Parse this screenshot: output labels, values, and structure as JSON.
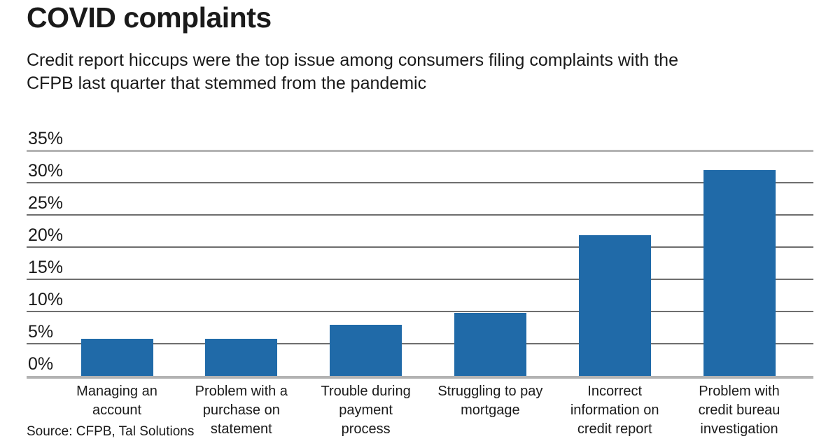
{
  "header": {
    "title": "COVID complaints",
    "subtitle": "Credit report hiccups were the top issue among consumers filing complaints with the\nCFPB last quarter that stemmed from the pandemic"
  },
  "source_note": "Source: CFPB, Tal Solutions",
  "colors": {
    "bar": "#206aa8",
    "gridline": "#6e6e6e",
    "boundary_line": "#b3b3b3",
    "text": "#1a1a1a",
    "background": "#ffffff"
  },
  "chart_data": {
    "type": "bar",
    "title": "COVID complaints",
    "subtitle": "Credit report hiccups were the top issue among consumers filing complaints with the CFPB last quarter that stemmed from the pandemic",
    "categories": [
      "Managing an account",
      "Problem with a purchase on statement",
      "Trouble during payment process",
      "Struggling to pay mortgage",
      "Incorrect information on credit report",
      "Problem with credit bureau investigation"
    ],
    "category_lines": [
      "Managing an\naccount",
      "Problem with a\npurchase on\nstatement",
      "Trouble during\npayment\nprocess",
      "Struggling to pay\nmortgage",
      "Incorrect\ninformation on\ncredit report",
      "Problem with\ncredit bureau\ninvestigation"
    ],
    "values": [
      5.8,
      5.8,
      7.9,
      9.8,
      21.9,
      32
    ],
    "unit": "%",
    "xlabel": "",
    "ylabel": "",
    "ylim": [
      0,
      35
    ],
    "yticks": [
      0,
      5,
      10,
      15,
      20,
      25,
      30,
      35
    ],
    "ytick_format": "{v}%",
    "grid": true,
    "legend": "none",
    "source": "Source: CFPB, Tal Solutions"
  }
}
